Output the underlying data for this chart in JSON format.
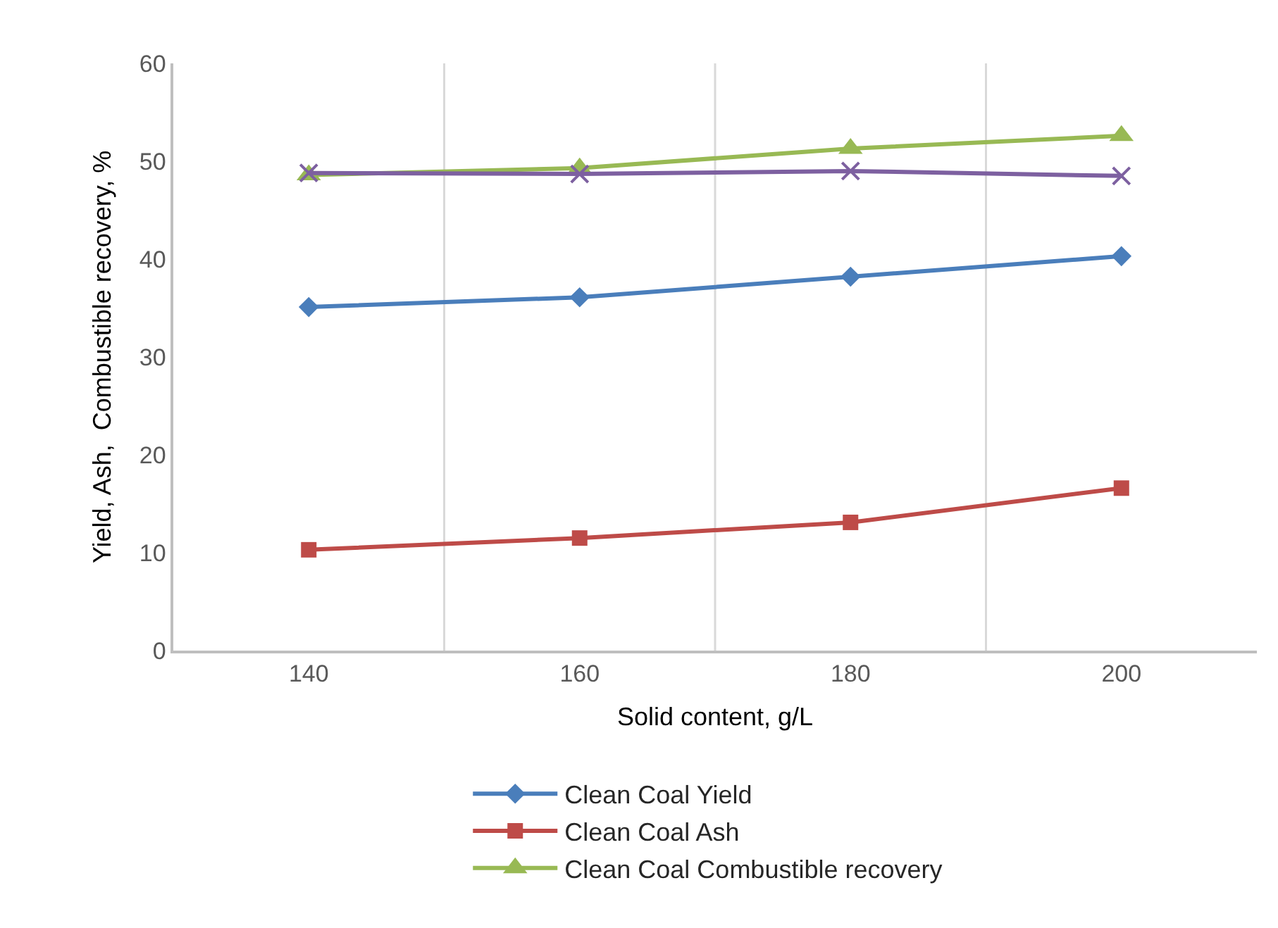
{
  "chart_data": {
    "type": "line",
    "xlabel": "Solid content, g/L",
    "ylabel": "Yield, Ash,  Combustible recovery, %",
    "categories": [
      "140",
      "160",
      "180",
      "200"
    ],
    "ylim": [
      0,
      60
    ],
    "yticks": [
      0,
      10,
      20,
      30,
      40,
      50,
      60
    ],
    "grid": "x",
    "legend": "bottom",
    "line_style": "solid",
    "series": [
      {
        "name": "Clean Coal Yield",
        "color": "#4a7ebb",
        "marker": "diamond",
        "values": [
          35.1,
          36.1,
          38.2,
          40.3
        ]
      },
      {
        "name": "Clean Coal Ash",
        "color": "#be4b48",
        "marker": "square",
        "values": [
          10.3,
          11.5,
          13.1,
          16.6
        ]
      },
      {
        "name": "Clean Coal Combustible recovery",
        "color": "#98b954",
        "marker": "triangle",
        "values": [
          48.6,
          49.3,
          51.3,
          52.6
        ]
      },
      {
        "color": "#7d60a0",
        "marker": "cross",
        "values": [
          48.8,
          48.7,
          49.0,
          48.5
        ]
      }
    ]
  }
}
